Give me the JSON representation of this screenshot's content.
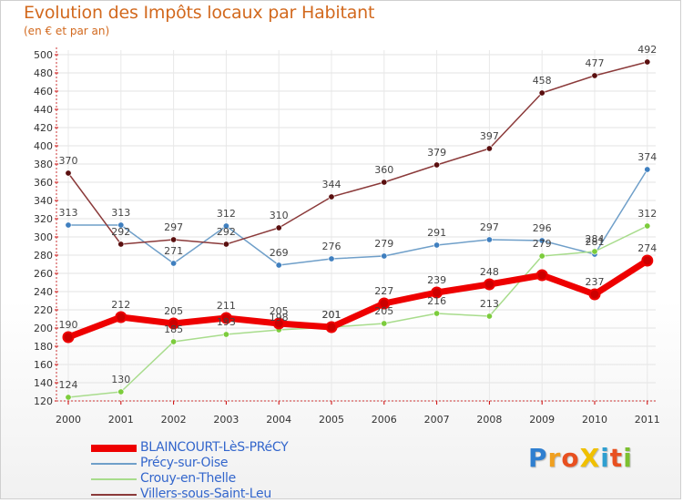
{
  "chart_data": {
    "type": "line",
    "title": "Evolution des Impôts locaux par Habitant",
    "subtitle": "(en € et par an)",
    "xlabel": "",
    "ylabel": "",
    "ylim": [
      120,
      500
    ],
    "ytick_step": 20,
    "grid": true,
    "categories": [
      "2000",
      "2001",
      "2002",
      "2003",
      "2004",
      "2005",
      "2006",
      "2007",
      "2008",
      "2009",
      "2010",
      "2011"
    ],
    "series": [
      {
        "name": "BLAINCOURT-LèS-PRéCY",
        "color": "#ee0000",
        "point_color": "#cc0000",
        "emphasis": true,
        "values": [
          190,
          212,
          205,
          211,
          205,
          201,
          227,
          239,
          248,
          258,
          237,
          274
        ],
        "labels": [
          "190",
          "212",
          "205",
          "211",
          "205",
          "201",
          "227",
          "239",
          "248",
          "",
          "237",
          "274"
        ]
      },
      {
        "name": "Précy-sur-Oise",
        "color": "#6f9fc9",
        "point_color": "#3f7fbf",
        "emphasis": false,
        "values": [
          313,
          313,
          271,
          312,
          269,
          276,
          279,
          291,
          297,
          296,
          281,
          374
        ],
        "labels": [
          "313",
          "313",
          "271",
          "312",
          "269",
          "276",
          "279",
          "291",
          "297",
          "296",
          "281",
          "374"
        ]
      },
      {
        "name": "Crouy-en-Thelle",
        "color": "#a8dc8c",
        "point_color": "#7ccc3c",
        "emphasis": false,
        "values": [
          124,
          130,
          185,
          193,
          198,
          201,
          205,
          216,
          213,
          279,
          284,
          312
        ],
        "labels": [
          "124",
          "130",
          "185",
          "193",
          "198",
          "201",
          "205",
          "216",
          "213",
          "279",
          "284",
          "312"
        ]
      },
      {
        "name": "Villers-sous-Saint-Leu",
        "color": "#8b3a3a",
        "point_color": "#5a0f0f",
        "emphasis": false,
        "values": [
          370,
          292,
          297,
          292,
          310,
          344,
          360,
          379,
          397,
          458,
          477,
          492
        ],
        "labels": [
          "370",
          "292",
          "297",
          "292",
          "310",
          "344",
          "360",
          "379",
          "397",
          "458",
          "477",
          "492"
        ]
      }
    ]
  },
  "legend": {
    "items": [
      {
        "label": "BLAINCOURT-LèS-PRéCY",
        "color": "#ee0000"
      },
      {
        "label": "Précy-sur-Oise",
        "color": "#6f9fc9"
      },
      {
        "label": "Crouy-en-Thelle",
        "color": "#a8dc8c"
      },
      {
        "label": "Villers-sous-Saint-Leu",
        "color": "#8b3a3a"
      }
    ]
  },
  "logo": {
    "text": "ProXiti",
    "letters": [
      {
        "ch": "P",
        "color": "#2f7fd0"
      },
      {
        "ch": "r",
        "color": "#f0a020"
      },
      {
        "ch": "o",
        "color": "#e85020"
      },
      {
        "ch": "X",
        "color": "#f0c000"
      },
      {
        "ch": "i",
        "color": "#2f9fd0"
      },
      {
        "ch": "t",
        "color": "#e85020"
      },
      {
        "ch": "i",
        "color": "#7cc030"
      }
    ]
  }
}
